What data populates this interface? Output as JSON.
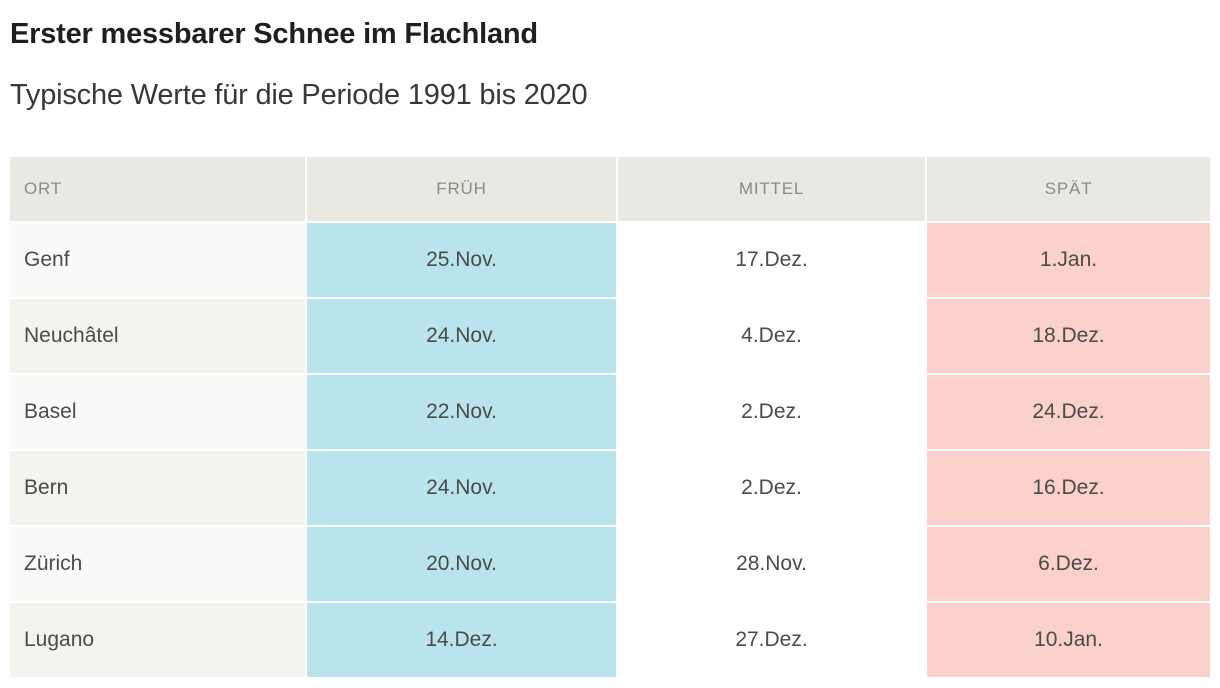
{
  "header": {
    "title": "Erster messbarer Schnee im Flachland",
    "subtitle": "Typische Werte für die Periode 1991 bis 2020"
  },
  "chart_data": {
    "type": "table",
    "title": "Erster messbarer Schnee im Flachland",
    "subtitle": "Typische Werte für die Periode 1991 bis 2020",
    "columns": [
      "ORT",
      "FRÜH",
      "MITTEL",
      "SPÄT"
    ],
    "column_keys": [
      "ort",
      "frueh",
      "mittel",
      "spaet"
    ],
    "rows": [
      [
        "Genf",
        "25.Nov.",
        "17.Dez.",
        "1.Jan."
      ],
      [
        "Neuchâtel",
        "24.Nov.",
        "4.Dez.",
        "18.Dez."
      ],
      [
        "Basel",
        "22.Nov.",
        "2.Dez.",
        "24.Dez."
      ],
      [
        "Bern",
        "24.Nov.",
        "2.Dez.",
        "16.Dez."
      ],
      [
        "Zürich",
        "20.Nov.",
        "28.Nov.",
        "6.Dez."
      ],
      [
        "Lugano",
        "14.Dez.",
        "27.Dez.",
        "10.Jan."
      ]
    ]
  },
  "colors": {
    "frueh_highlight": "#b9e4ee",
    "spaet_highlight": "#fcd0cb",
    "header_bg": "#e9e8e2",
    "row_odd_bg": "#fafaf8",
    "row_even_bg": "#f4f3ee",
    "header_text": "#8b8b83",
    "cell_text": "#4b4b49",
    "title_text": "#1f1f1f",
    "subtitle_text": "#383838"
  }
}
